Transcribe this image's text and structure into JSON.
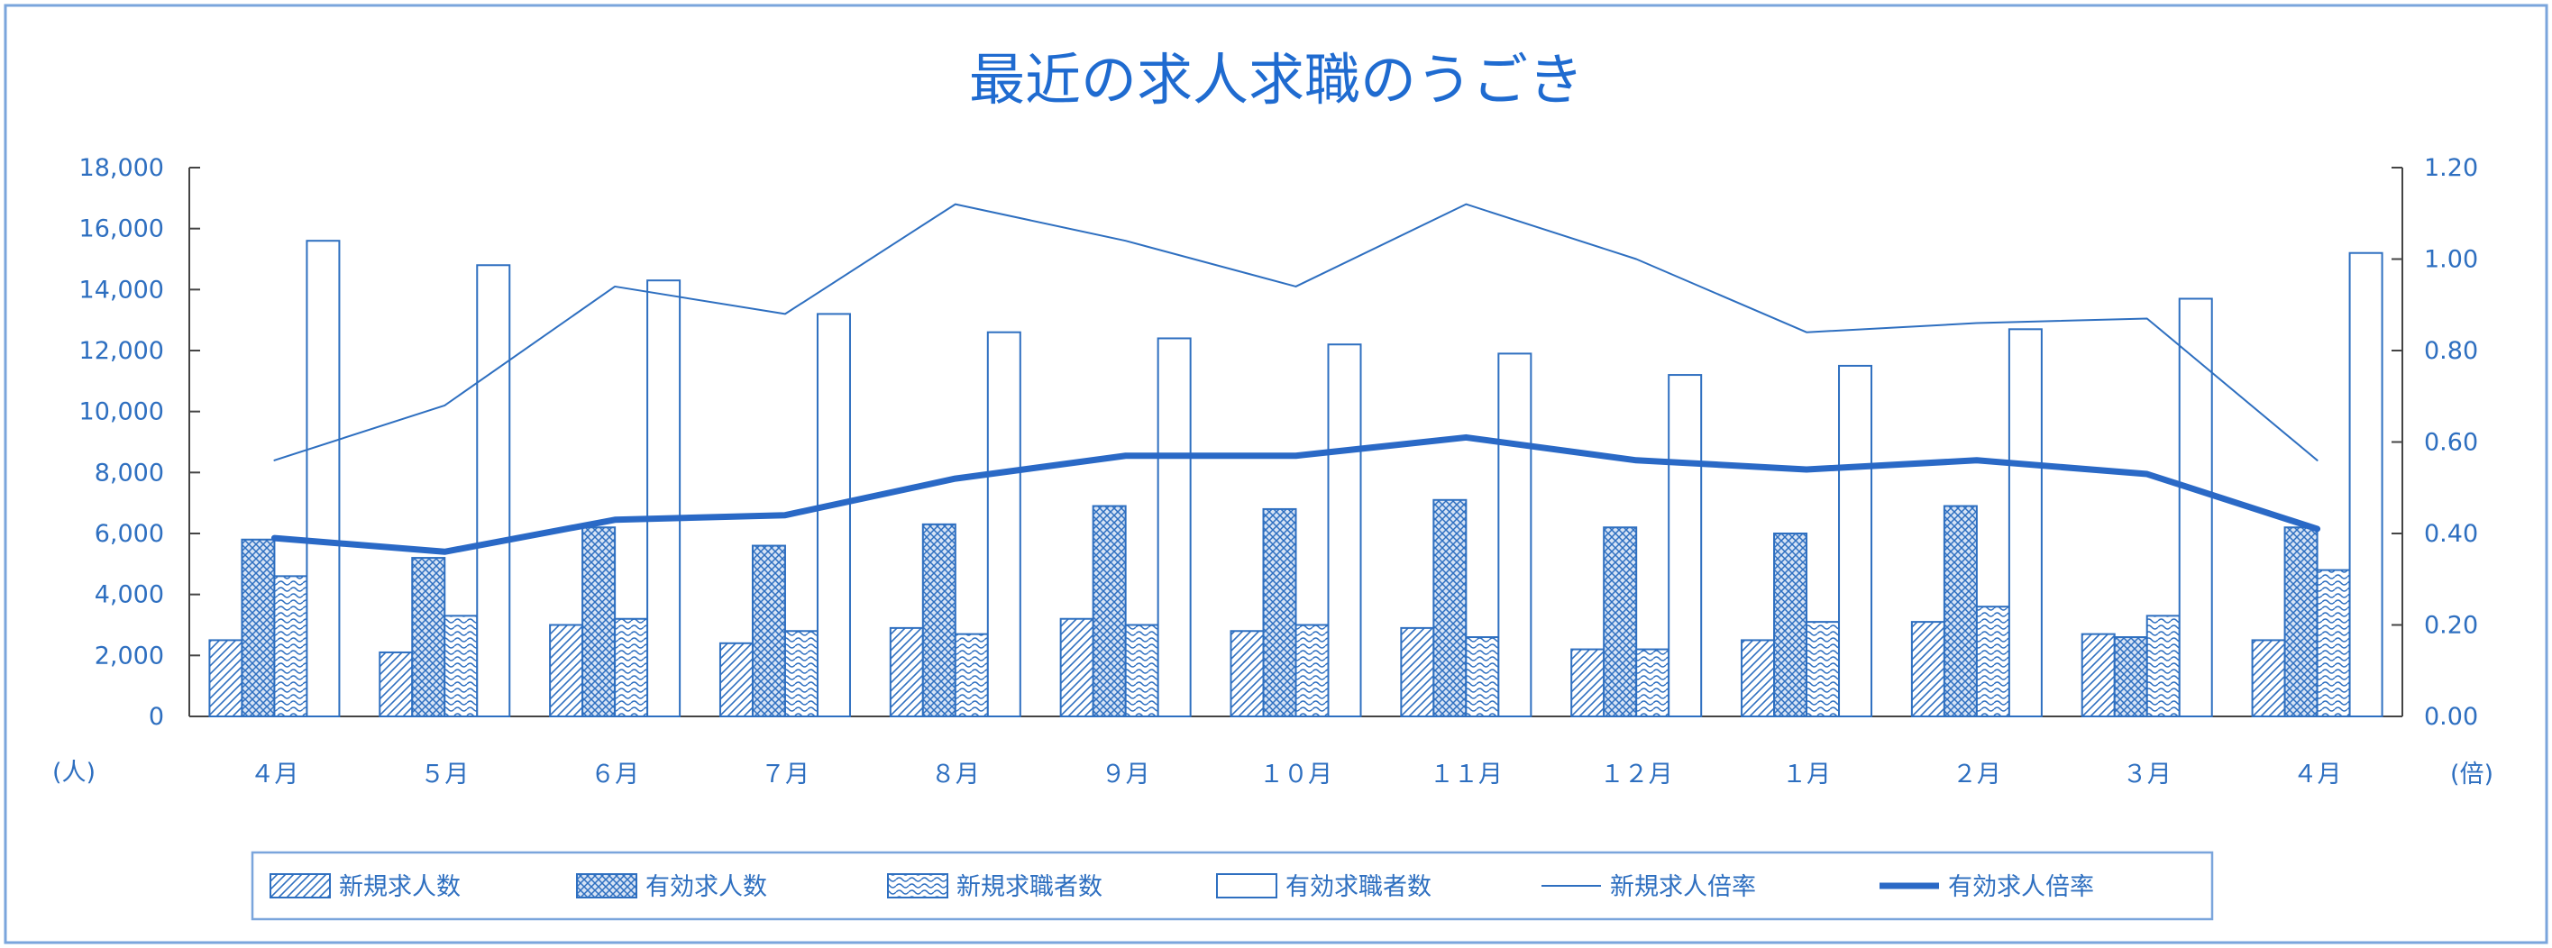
{
  "chart_data": {
    "type": "bar",
    "title": "最近の求人求職のうごき",
    "categories": [
      "４月",
      "５月",
      "６月",
      "７月",
      "８月",
      "９月",
      "１０月",
      "１１月",
      "１２月",
      "１月",
      "２月",
      "３月",
      "４月"
    ],
    "left_axis": {
      "unit": "(人)",
      "min": 0,
      "max": 18000,
      "ticks": [
        "18,000",
        "16,000",
        "14,000",
        "12,000",
        "10,000",
        "8,000",
        "6,000",
        "4,000",
        "2,000",
        "0"
      ]
    },
    "right_axis": {
      "unit": "(倍)",
      "min": 0,
      "max": 1.2,
      "ticks": [
        "1.20",
        "1.00",
        "0.80",
        "0.60",
        "0.40",
        "0.20",
        "0.00"
      ]
    },
    "series": [
      {
        "name": "新規求人数",
        "kind": "bar",
        "axis": "left",
        "pattern": "diag",
        "values": [
          2500,
          2100,
          3000,
          2400,
          2900,
          3200,
          2800,
          2900,
          2200,
          2500,
          3100,
          2700,
          2500
        ]
      },
      {
        "name": "有効求人数",
        "kind": "bar",
        "axis": "left",
        "pattern": "cross",
        "values": [
          5800,
          5200,
          6200,
          5600,
          6300,
          6900,
          6800,
          7100,
          6200,
          6000,
          6900,
          2600,
          6200
        ]
      },
      {
        "name": "新規求職者数",
        "kind": "bar",
        "axis": "left",
        "pattern": "wave",
        "values": [
          4600,
          3300,
          3200,
          2800,
          2700,
          3000,
          3000,
          2600,
          2200,
          3100,
          3600,
          3300,
          4800
        ]
      },
      {
        "name": "有効求職者数",
        "kind": "bar",
        "axis": "left",
        "pattern": "empty",
        "values": [
          15600,
          14800,
          14300,
          13200,
          12600,
          12400,
          12200,
          11900,
          11200,
          11500,
          12700,
          13700,
          15200
        ]
      },
      {
        "name": "新規求人倍率",
        "kind": "line",
        "axis": "right",
        "width": "thin",
        "values": [
          0.56,
          0.68,
          0.94,
          0.88,
          1.12,
          1.04,
          0.94,
          1.12,
          1.0,
          0.84,
          0.86,
          0.87,
          0.56
        ]
      },
      {
        "name": "有効求人倍率",
        "kind": "line",
        "axis": "right",
        "width": "thick",
        "values": [
          0.39,
          0.36,
          0.43,
          0.44,
          0.52,
          0.57,
          0.57,
          0.61,
          0.56,
          0.54,
          0.56,
          0.53,
          0.41
        ]
      }
    ],
    "grid": false,
    "legend_position": "bottom",
    "colors": {
      "line": "#2e6fc0",
      "thick_line": "#2a69c6",
      "frame": "#7aa5dc"
    }
  }
}
